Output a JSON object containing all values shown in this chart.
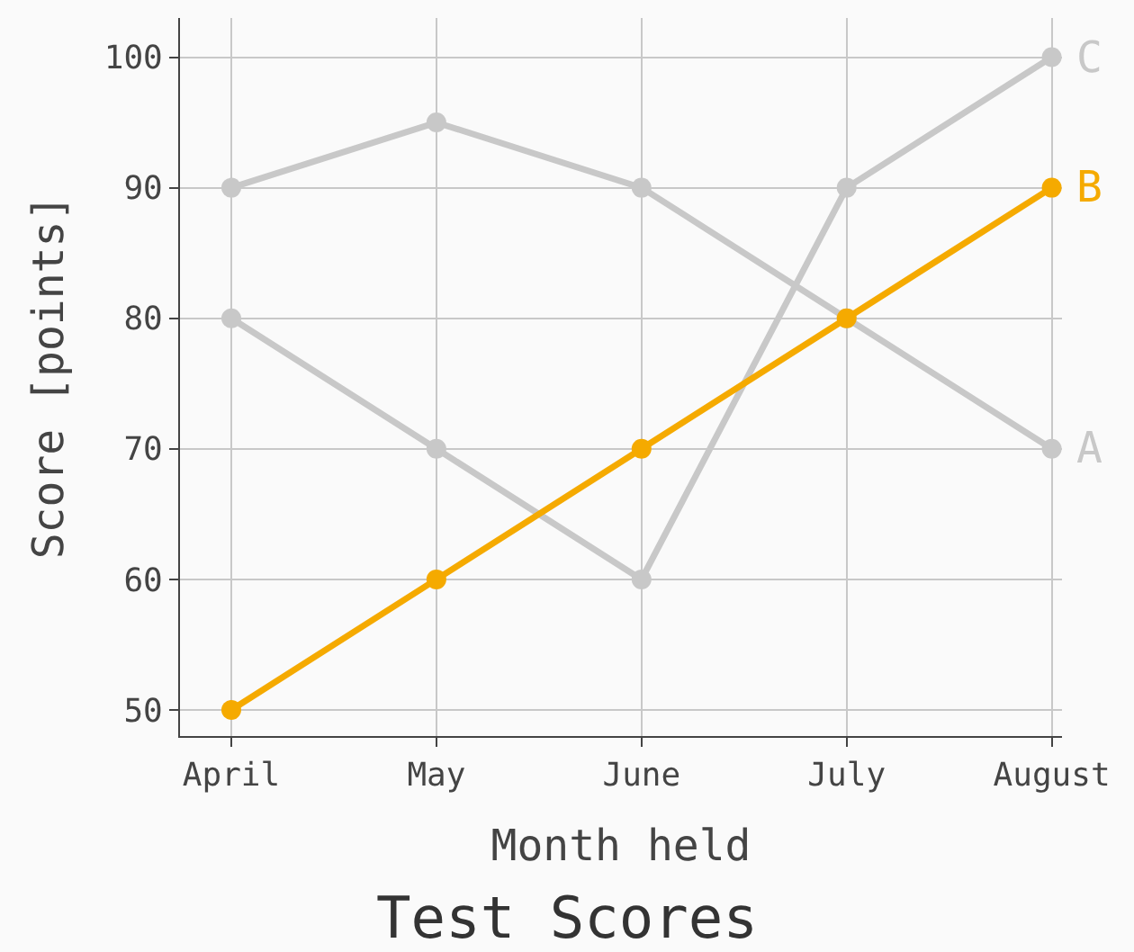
{
  "chart_data": {
    "type": "line",
    "title": "Test Scores",
    "xlabel": "Month held",
    "ylabel": "Score [points]",
    "categories": [
      "April",
      "May",
      "June",
      "July",
      "August"
    ],
    "series": [
      {
        "name": "A",
        "color": "#c8c8c8",
        "values": [
          90,
          95,
          90,
          80,
          70
        ]
      },
      {
        "name": "C",
        "color": "#c8c8c8",
        "values": [
          80,
          70,
          60,
          90,
          100
        ]
      },
      {
        "name": "B",
        "color": "#f5aa00",
        "values": [
          50,
          60,
          70,
          80,
          90
        ]
      }
    ],
    "ylim": [
      48,
      103
    ],
    "yticks": [
      50,
      60,
      70,
      80,
      90,
      100
    ],
    "grid": true,
    "legend": false,
    "marker": "circle",
    "line_style": "solid"
  }
}
